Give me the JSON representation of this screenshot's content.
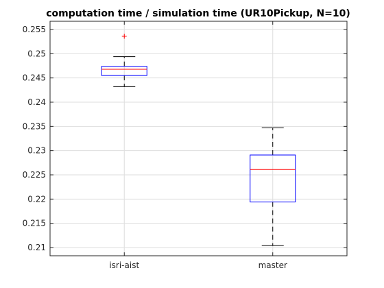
{
  "chart_data": {
    "type": "box",
    "title": "computation time / simulation time (UR10Pickup, N=10)",
    "xlabel": "",
    "ylabel": "",
    "categories": [
      "isri-aist",
      "master"
    ],
    "ylim": [
      0.2083,
      0.2567
    ],
    "yticks": [
      0.21,
      0.215,
      0.22,
      0.225,
      0.23,
      0.235,
      0.24,
      0.245,
      0.25,
      0.255
    ],
    "ytick_labels": [
      "0.21",
      "0.215",
      "0.22",
      "0.225",
      "0.23",
      "0.235",
      "0.24",
      "0.245",
      "0.25",
      "0.255"
    ],
    "grid": true,
    "boxes": [
      {
        "category": "isri-aist",
        "whisker_low": 0.2432,
        "q1": 0.2455,
        "median": 0.2468,
        "q3": 0.2474,
        "whisker_high": 0.2494,
        "outliers": [
          0.2536
        ]
      },
      {
        "category": "master",
        "whisker_low": 0.2104,
        "q1": 0.2194,
        "median": 0.2261,
        "q3": 0.2291,
        "whisker_high": 0.2347,
        "outliers": []
      }
    ],
    "colors": {
      "box": "#0000ff",
      "median": "#ff0000",
      "whisker": "#000000",
      "outlier": "#ff0000",
      "grid": "#dedede",
      "axis": "#262626"
    }
  }
}
